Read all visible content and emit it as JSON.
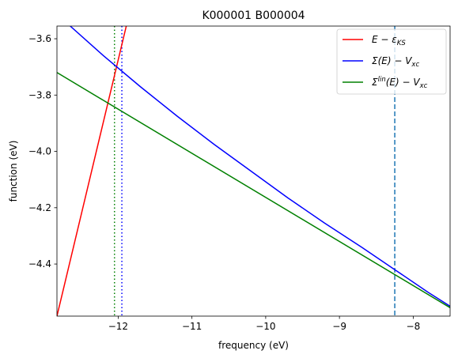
{
  "chart_data": {
    "type": "line",
    "title": "K000001 B000004",
    "xlabel": "frequency (eV)",
    "ylabel": "function (eV)",
    "xlim": [
      -12.83,
      -7.5
    ],
    "ylim": [
      -4.585,
      -3.555
    ],
    "x_ticks": [
      {
        "value": -12,
        "label": "−12"
      },
      {
        "value": -11,
        "label": "−11"
      },
      {
        "value": -10,
        "label": "−10"
      },
      {
        "value": -9,
        "label": "−9"
      },
      {
        "value": -8,
        "label": "−8"
      }
    ],
    "y_ticks": [
      {
        "value": -4.4,
        "label": "−4.4"
      },
      {
        "value": -4.2,
        "label": "−4.2"
      },
      {
        "value": -4.0,
        "label": "−4.0"
      },
      {
        "value": -3.8,
        "label": "−3.8"
      },
      {
        "value": -3.6,
        "label": "−3.6"
      }
    ],
    "grid": false,
    "legend_position": "top-right",
    "series": [
      {
        "key": "e_minus_eks",
        "legend_main": "E − ε",
        "legend_sub": "KS",
        "color": "#ff0000",
        "style": "solid",
        "points": [
          [
            -12.83,
            -4.585
          ],
          [
            -11.89,
            -3.555
          ]
        ]
      },
      {
        "key": "sigma_minus_vxc",
        "legend_main": "Σ(E) − V",
        "legend_sub": "xc",
        "color": "#0000ff",
        "style": "solid",
        "points": [
          [
            -12.65,
            -3.555
          ],
          [
            -12.2,
            -3.66
          ],
          [
            -11.7,
            -3.77
          ],
          [
            -11.2,
            -3.875
          ],
          [
            -10.7,
            -3.975
          ],
          [
            -10.2,
            -4.07
          ],
          [
            -9.7,
            -4.165
          ],
          [
            -9.2,
            -4.255
          ],
          [
            -8.7,
            -4.34
          ],
          [
            -8.25,
            -4.42
          ],
          [
            -7.8,
            -4.5
          ],
          [
            -7.5,
            -4.55
          ]
        ]
      },
      {
        "key": "sigma_lin_minus_vxc",
        "legend_main": "Σ",
        "legend_sup": "lin",
        "legend_tail": "(E) − V",
        "legend_sub": "xc",
        "color": "#008000",
        "style": "solid",
        "points": [
          [
            -12.83,
            -3.72
          ],
          [
            -7.5,
            -4.555
          ]
        ]
      }
    ],
    "vlines": [
      {
        "x": -12.05,
        "color": "#008000",
        "style": "dotted"
      },
      {
        "x": -11.95,
        "color": "#0000ff",
        "style": "dotted"
      },
      {
        "x": -8.25,
        "color": "#1f77b4",
        "style": "dashed"
      }
    ]
  }
}
